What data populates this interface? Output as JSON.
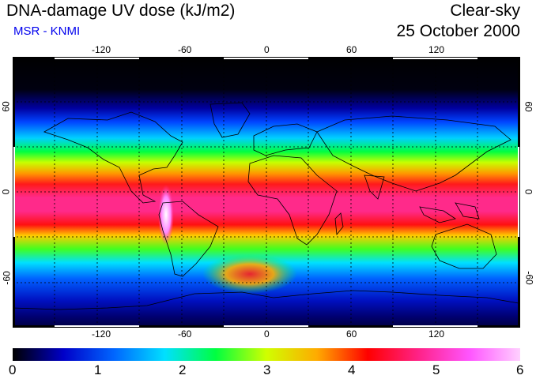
{
  "header": {
    "title": "DNA-damage UV dose (kJ/m2)",
    "source": "MSR - KNMI",
    "sky": "Clear-sky",
    "date": "25 October 2000"
  },
  "map": {
    "projection": "equirectangular",
    "lon_ticks": [
      "-120",
      "-60",
      "0",
      "60",
      "120"
    ],
    "lat_ticks": [
      "60",
      "0",
      "-60"
    ],
    "gridlines": "dotted, every 30 degrees"
  },
  "colorbar": {
    "labels": [
      "0",
      "1",
      "2",
      "3",
      "4",
      "5",
      "6"
    ],
    "colors": [
      "#000000",
      "#0000c8",
      "#0066ff",
      "#00e0ff",
      "#00ff40",
      "#d0ff00",
      "#ffaa00",
      "#ff0000",
      "#ff2288",
      "#ff55ff",
      "#ffd0ff"
    ]
  }
}
